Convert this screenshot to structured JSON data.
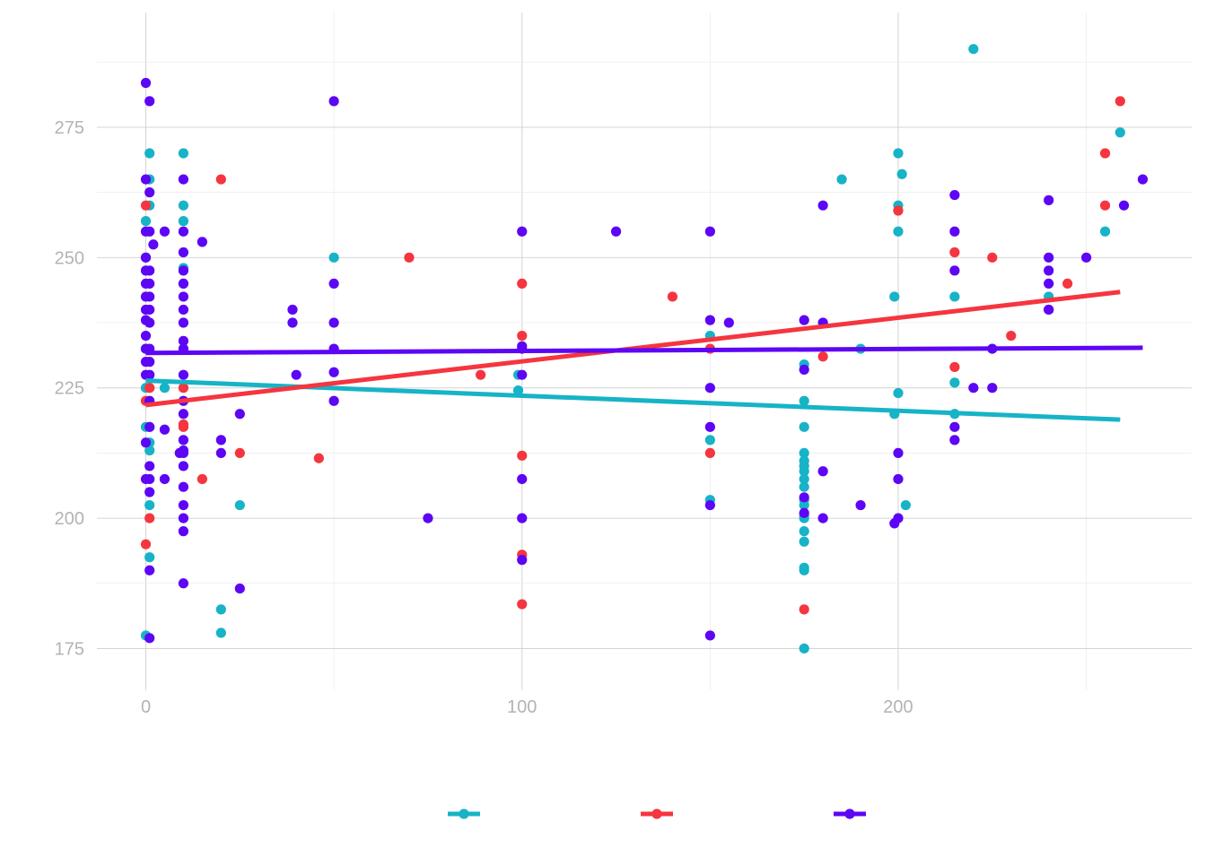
{
  "chart_data": {
    "type": "scatter",
    "title": "",
    "xlabel": "",
    "ylabel": "",
    "xlim": [
      -13,
      278
    ],
    "ylim": [
      167,
      297
    ],
    "x_ticks": [
      0,
      100,
      200
    ],
    "y_ticks": [
      175,
      200,
      225,
      250,
      275
    ],
    "grid": true,
    "legend": "bottom",
    "series": [
      {
        "color": "#17b3c7",
        "points": [
          [
            0,
            177.5
          ],
          [
            0,
            217.5
          ],
          [
            0,
            225
          ],
          [
            0,
            232.5
          ],
          [
            0,
            257
          ],
          [
            0,
            250
          ],
          [
            1,
            265
          ],
          [
            1,
            270
          ],
          [
            1,
            260
          ],
          [
            1,
            225
          ],
          [
            1,
            214.5
          ],
          [
            1,
            213
          ],
          [
            1,
            202.5
          ],
          [
            1,
            192.5
          ],
          [
            1,
            217.5
          ],
          [
            5,
            225
          ],
          [
            10,
            270
          ],
          [
            10,
            260
          ],
          [
            10,
            257
          ],
          [
            10,
            248
          ],
          [
            10,
            245
          ],
          [
            20,
            182.5
          ],
          [
            20,
            178
          ],
          [
            25,
            202.5
          ],
          [
            50,
            250
          ],
          [
            99,
            227.5
          ],
          [
            99,
            224.5
          ],
          [
            150,
            235
          ],
          [
            150,
            215
          ],
          [
            150,
            203.5
          ],
          [
            175,
            229.5
          ],
          [
            175,
            222.5
          ],
          [
            175,
            217.5
          ],
          [
            175,
            212.5
          ],
          [
            175,
            211
          ],
          [
            175,
            210
          ],
          [
            175,
            209
          ],
          [
            175,
            207.5
          ],
          [
            175,
            206
          ],
          [
            175,
            203.5
          ],
          [
            175,
            202.5
          ],
          [
            175,
            200.5
          ],
          [
            175,
            200
          ],
          [
            175,
            197.5
          ],
          [
            175,
            195.5
          ],
          [
            175,
            190.5
          ],
          [
            175,
            190
          ],
          [
            175,
            175
          ],
          [
            185,
            265
          ],
          [
            190,
            232.5
          ],
          [
            199,
            242.5
          ],
          [
            199,
            220
          ],
          [
            200,
            270
          ],
          [
            200,
            260
          ],
          [
            200,
            255
          ],
          [
            200,
            224
          ],
          [
            201,
            266
          ],
          [
            202,
            202.5
          ],
          [
            215,
            242.5
          ],
          [
            215,
            226
          ],
          [
            215,
            220
          ],
          [
            220,
            290
          ],
          [
            240,
            242.5
          ],
          [
            255,
            255
          ],
          [
            259,
            274
          ]
        ],
        "trend": [
          [
            0,
            226.4
          ],
          [
            259,
            218.9
          ]
        ]
      },
      {
        "color": "#f5353f",
        "points": [
          [
            0,
            260
          ],
          [
            0,
            222.5
          ],
          [
            0,
            195
          ],
          [
            1,
            200
          ],
          [
            1,
            225
          ],
          [
            10,
            225
          ],
          [
            10,
            218
          ],
          [
            10,
            217.5
          ],
          [
            15,
            207.5
          ],
          [
            20,
            265
          ],
          [
            25,
            212.5
          ],
          [
            46,
            211.5
          ],
          [
            70,
            250
          ],
          [
            89,
            227.5
          ],
          [
            100,
            245
          ],
          [
            100,
            235
          ],
          [
            100,
            212
          ],
          [
            100,
            193
          ],
          [
            100,
            183.5
          ],
          [
            140,
            242.5
          ],
          [
            150,
            232.5
          ],
          [
            150,
            212.5
          ],
          [
            175,
            182.5
          ],
          [
            180,
            231
          ],
          [
            200,
            259
          ],
          [
            215,
            251
          ],
          [
            215,
            229
          ],
          [
            225,
            250
          ],
          [
            230,
            235
          ],
          [
            240,
            240
          ],
          [
            245,
            245
          ],
          [
            255,
            270
          ],
          [
            255,
            260
          ],
          [
            259,
            280
          ]
        ],
        "trend": [
          [
            0,
            221.7
          ],
          [
            259,
            243.4
          ]
        ]
      },
      {
        "color": "#5d05f5",
        "points": [
          [
            0,
            283.5
          ],
          [
            0,
            265
          ],
          [
            0,
            255
          ],
          [
            0,
            250
          ],
          [
            0,
            247.5
          ],
          [
            0,
            245
          ],
          [
            0,
            242.5
          ],
          [
            0,
            240
          ],
          [
            0,
            238
          ],
          [
            0,
            235
          ],
          [
            0,
            232.5
          ],
          [
            0,
            230
          ],
          [
            0,
            227.5
          ],
          [
            0,
            214.5
          ],
          [
            0,
            207.5
          ],
          [
            1,
            280
          ],
          [
            1,
            262.5
          ],
          [
            1,
            255
          ],
          [
            1,
            247.5
          ],
          [
            1,
            245
          ],
          [
            1,
            242.5
          ],
          [
            1,
            240
          ],
          [
            1,
            237.5
          ],
          [
            1,
            232.5
          ],
          [
            1,
            230
          ],
          [
            1,
            227.5
          ],
          [
            1,
            222.5
          ],
          [
            1,
            217.5
          ],
          [
            1,
            210
          ],
          [
            1,
            207.5
          ],
          [
            1,
            205
          ],
          [
            1,
            190
          ],
          [
            1,
            177
          ],
          [
            2,
            252.5
          ],
          [
            5,
            255
          ],
          [
            5,
            217
          ],
          [
            5,
            207.5
          ],
          [
            9,
            212.5
          ],
          [
            10,
            265
          ],
          [
            10,
            255
          ],
          [
            10,
            251
          ],
          [
            10,
            247.5
          ],
          [
            10,
            245
          ],
          [
            10,
            242.5
          ],
          [
            10,
            240
          ],
          [
            10,
            237.5
          ],
          [
            10,
            234
          ],
          [
            10,
            232.5
          ],
          [
            10,
            227.5
          ],
          [
            10,
            222.5
          ],
          [
            10,
            220
          ],
          [
            10,
            215
          ],
          [
            10,
            213
          ],
          [
            10,
            212.5
          ],
          [
            10,
            210
          ],
          [
            10,
            206
          ],
          [
            10,
            202.5
          ],
          [
            10,
            200
          ],
          [
            10,
            197.5
          ],
          [
            10,
            187.5
          ],
          [
            15,
            253
          ],
          [
            20,
            215
          ],
          [
            20,
            212.5
          ],
          [
            25,
            220
          ],
          [
            25,
            186.5
          ],
          [
            39,
            240
          ],
          [
            39,
            237.5
          ],
          [
            40,
            227.5
          ],
          [
            50,
            280
          ],
          [
            50,
            245
          ],
          [
            50,
            237.5
          ],
          [
            50,
            232.5
          ],
          [
            50,
            228
          ],
          [
            50,
            222.5
          ],
          [
            75,
            200
          ],
          [
            100,
            255
          ],
          [
            100,
            233
          ],
          [
            100,
            232.5
          ],
          [
            100,
            227.5
          ],
          [
            100,
            207.5
          ],
          [
            100,
            200
          ],
          [
            100,
            192
          ],
          [
            125,
            255
          ],
          [
            150,
            255
          ],
          [
            150,
            238
          ],
          [
            150,
            225
          ],
          [
            150,
            217.5
          ],
          [
            150,
            202.5
          ],
          [
            150,
            177.5
          ],
          [
            155,
            237.5
          ],
          [
            175,
            238
          ],
          [
            175,
            228.5
          ],
          [
            175,
            204
          ],
          [
            175,
            201
          ],
          [
            180,
            260
          ],
          [
            180,
            237.5
          ],
          [
            180,
            209
          ],
          [
            180,
            200
          ],
          [
            190,
            202.5
          ],
          [
            199,
            199
          ],
          [
            200,
            212.5
          ],
          [
            200,
            207.5
          ],
          [
            200,
            200
          ],
          [
            215,
            262
          ],
          [
            215,
            255
          ],
          [
            215,
            247.5
          ],
          [
            215,
            217.5
          ],
          [
            215,
            215
          ],
          [
            220,
            225
          ],
          [
            225,
            232.5
          ],
          [
            225,
            225
          ],
          [
            240,
            261
          ],
          [
            240,
            250
          ],
          [
            240,
            247.5
          ],
          [
            240,
            245
          ],
          [
            240,
            240
          ],
          [
            250,
            250
          ],
          [
            260,
            260
          ],
          [
            265,
            265
          ]
        ],
        "trend": [
          [
            0,
            231.7
          ],
          [
            265,
            232.7
          ]
        ]
      }
    ]
  }
}
